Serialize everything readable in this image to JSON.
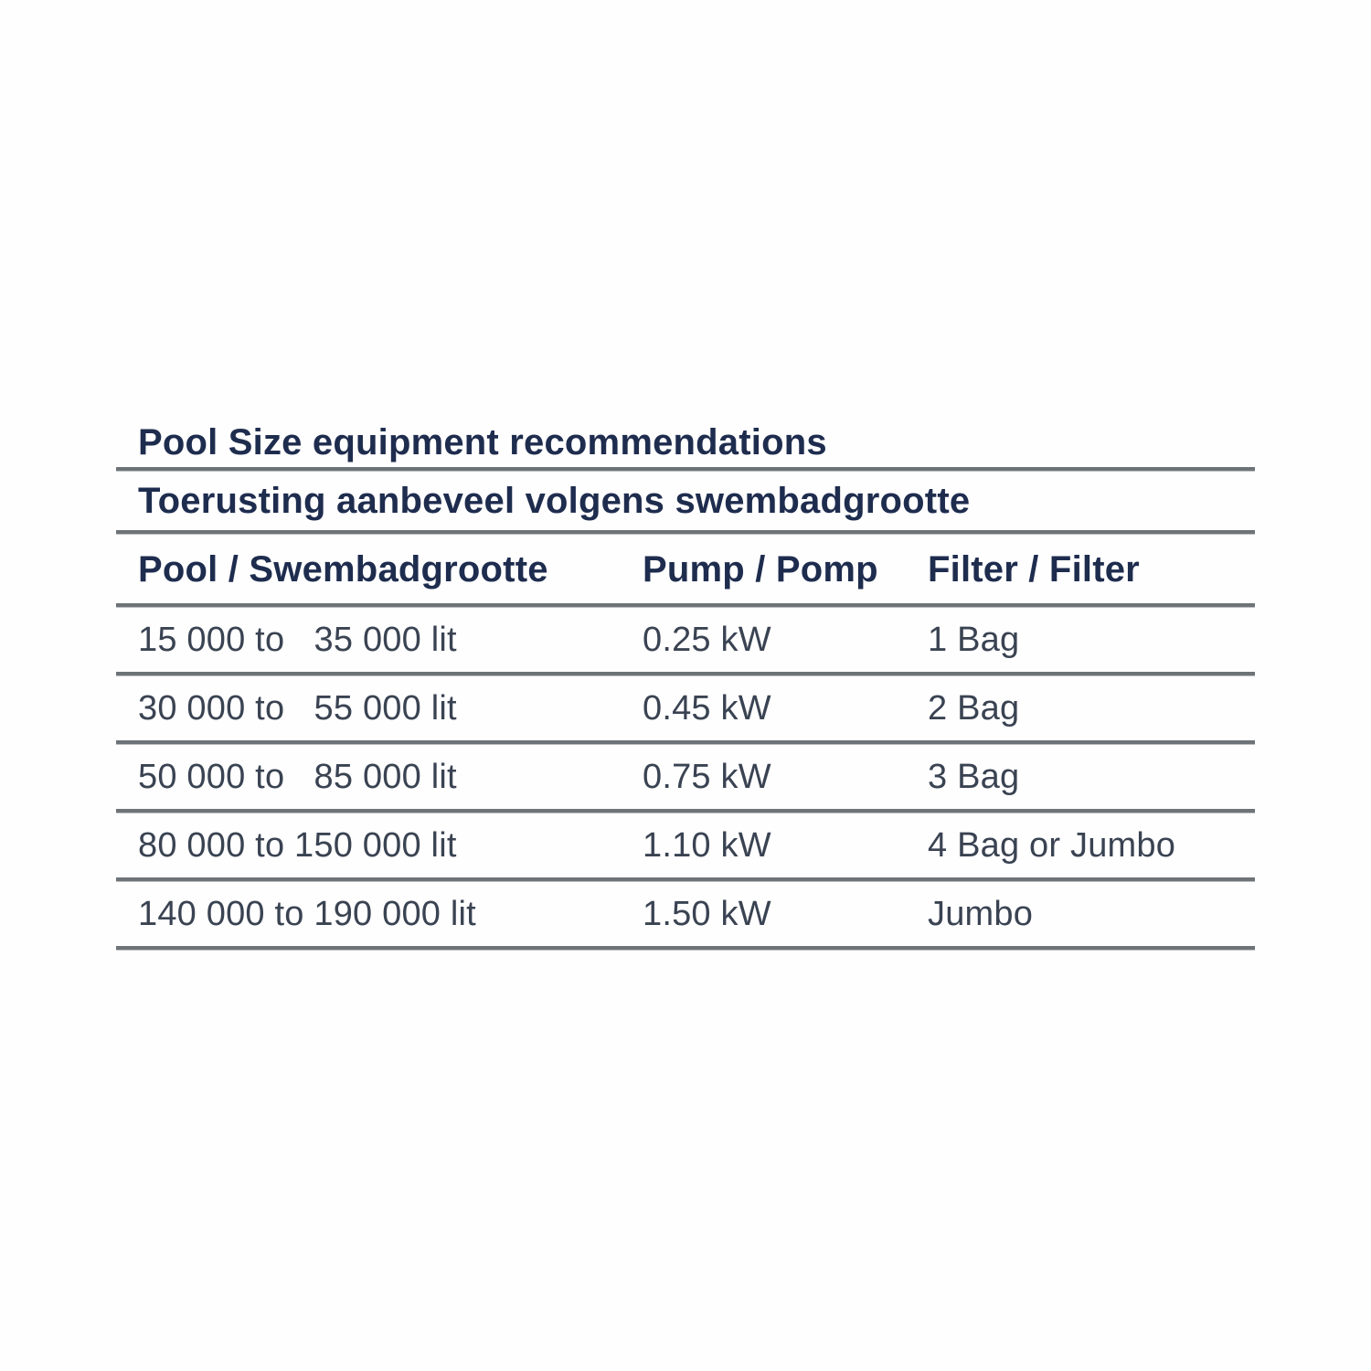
{
  "table": {
    "title_en": "Pool Size equipment recommendations",
    "title_af": "Toerusting aanbeveel volgens swembadgrootte",
    "columns": [
      "Pool / Swembadgrootte",
      "Pump / Pomp",
      "Filter / Filter"
    ],
    "rows": [
      {
        "pool": "15 000 to   35 000 lit",
        "pump": "0.25 kW",
        "filter": "1 Bag"
      },
      {
        "pool": "30 000 to   55 000 lit",
        "pump": "0.45 kW",
        "filter": "2 Bag"
      },
      {
        "pool": "50 000 to   85 000 lit",
        "pump": "0.75 kW",
        "filter": "3 Bag"
      },
      {
        "pool": "80 000 to 150 000 lit",
        "pump": "1.10 kW",
        "filter": "4 Bag or Jumbo"
      },
      {
        "pool": "140 000 to 190 000 lit",
        "pump": "1.50 kW",
        "filter": "Jumbo"
      }
    ],
    "colors": {
      "heading": "#1e2c4e",
      "data": "#3a4352",
      "line": "#6d7377",
      "background": "#fefefe"
    }
  }
}
